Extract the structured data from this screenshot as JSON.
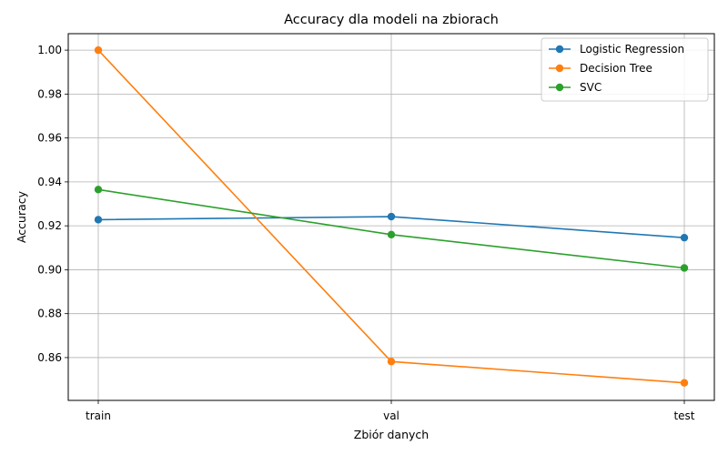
{
  "chart_data": {
    "type": "line",
    "title": "Accuracy dla modeli na zbiorach",
    "xlabel": "Zbiór danych",
    "ylabel": "Accuracy",
    "categories": [
      "train",
      "val",
      "test"
    ],
    "ylim": [
      0.8405,
      1.0075
    ],
    "yticks": [
      0.86,
      0.88,
      0.9,
      0.92,
      0.94,
      0.96,
      0.98,
      1.0
    ],
    "ytick_labels": [
      "0.86",
      "0.88",
      "0.90",
      "0.92",
      "0.94",
      "0.96",
      "0.98",
      "1.00"
    ],
    "grid": true,
    "legend_position": "top-right",
    "series": [
      {
        "name": "Logistic Regression",
        "color": "#1f77b4",
        "values": [
          0.9228,
          0.9242,
          0.9146
        ]
      },
      {
        "name": "Decision Tree",
        "color": "#ff7f0e",
        "values": [
          1.0,
          0.8582,
          0.8485
        ]
      },
      {
        "name": "SVC",
        "color": "#2ca02c",
        "values": [
          0.9365,
          0.916,
          0.9008
        ]
      }
    ]
  }
}
